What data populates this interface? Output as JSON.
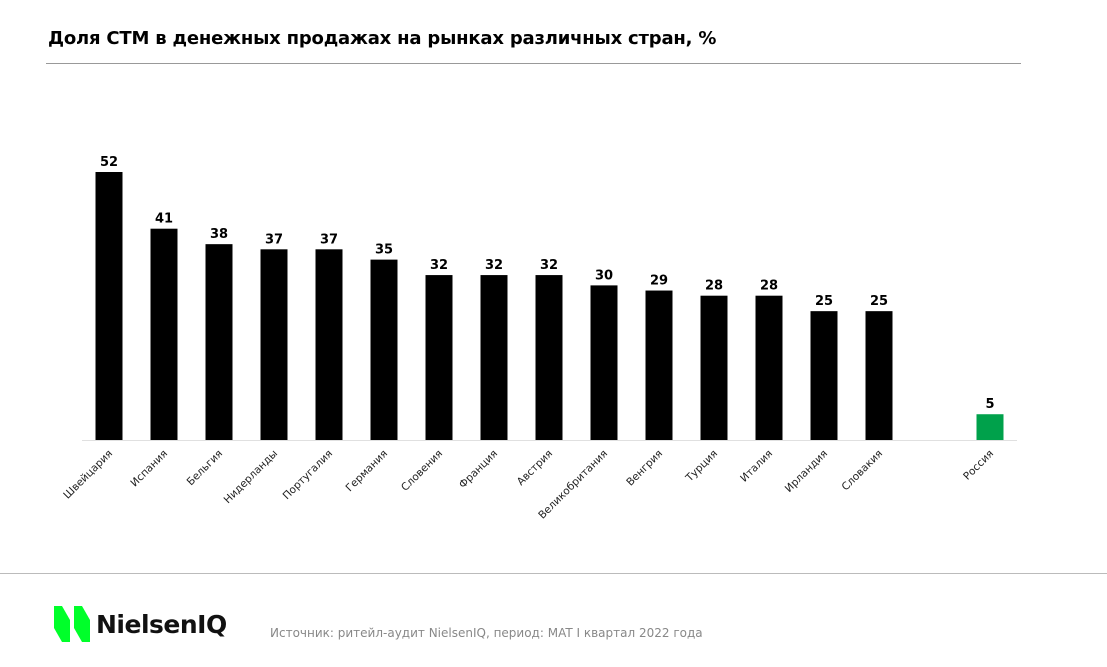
{
  "chart_data": {
    "type": "bar",
    "title": "Доля СТМ в денежных продажах на рынках различных стран, %",
    "categories": [
      "Швейцария",
      "Испания",
      "Бельгия",
      "Нидерланды",
      "Португалия",
      "Германия",
      "Словения",
      "Франция",
      "Австрия",
      "Великобритания",
      "Венгрия",
      "Турция",
      "Италия",
      "Ирландия",
      "Словакия",
      "Россия"
    ],
    "values": [
      52,
      41,
      38,
      37,
      37,
      35,
      32,
      32,
      32,
      30,
      29,
      28,
      28,
      25,
      25,
      5
    ],
    "bar_color": "#000000",
    "highlight_color": "#00a14b",
    "highlight_category": "Россия",
    "grid": false,
    "ylim": [
      0,
      52
    ]
  },
  "footer": {
    "logo": "NielsenIQ",
    "logo_color": "#00ff2a",
    "source": "Источник: ритейл-аудит NielsenIQ, период: MAT I квартал 2022 года"
  }
}
